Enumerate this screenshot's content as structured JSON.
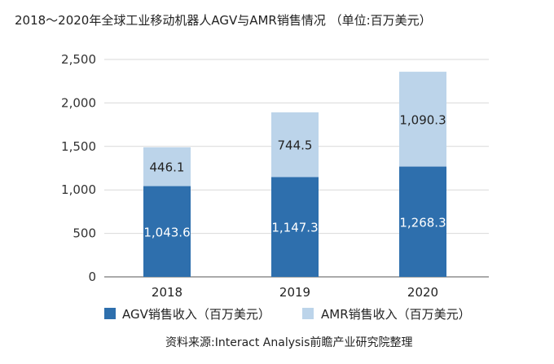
{
  "chart_data": {
    "type": "bar",
    "stacked": true,
    "title": "2018～2020年全球工业移动机器人AGV与AMR销售情况 （单位:百万美元）",
    "categories": [
      "2018",
      "2019",
      "2020"
    ],
    "series": [
      {
        "name": "AGV销售收入（百万美元）",
        "values": [
          1043.6,
          1147.3,
          1268.3
        ],
        "labels": [
          "1,043.6",
          "1,147.3",
          "1,268.3"
        ],
        "color": "#2e6fad"
      },
      {
        "name": "AMR销售收入（百万美元）",
        "values": [
          446.1,
          744.5,
          1090.3
        ],
        "labels": [
          "446.1",
          "744.5",
          "1,090.3"
        ],
        "color": "#bcd4ea"
      }
    ],
    "ylim": [
      0,
      2500
    ],
    "yticks": [
      "0",
      "500",
      "1,000",
      "1,500",
      "2,000",
      "2,500"
    ],
    "ytick_values": [
      0,
      500,
      1000,
      1500,
      2000,
      2500
    ],
    "grid": true,
    "legend_position": "bottom",
    "source": "资料来源:Interact Analysis前瞻产业研究院整理"
  }
}
